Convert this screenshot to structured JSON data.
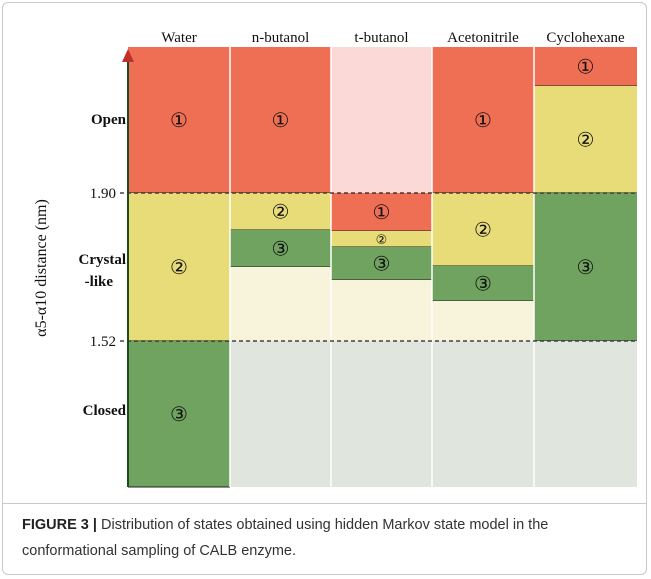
{
  "figure": {
    "columns": [
      {
        "name": "Water",
        "states": [
          "①",
          "②",
          "③"
        ]
      },
      {
        "name": "n-butanol",
        "states": [
          "①",
          "②",
          "③"
        ]
      },
      {
        "name": "t-butanol",
        "states": [
          "①",
          "②",
          "③"
        ]
      },
      {
        "name": "Acetonitrile",
        "states": [
          "①",
          "②",
          "③"
        ]
      },
      {
        "name": "Cyclohexane",
        "states": [
          "①",
          "②",
          "③"
        ]
      }
    ],
    "row_labels": {
      "open": "Open",
      "crystal": [
        "Crystal",
        "-like"
      ],
      "closed": "Closed"
    },
    "ticks": [
      "1.90",
      "1.52"
    ],
    "axis_label": "α5-α10 distance (nm)"
  },
  "caption": {
    "label": "FIGURE 3 |",
    "text": " Distribution of states obtained using hidden Markov state model in the conformational sampling of CALB enzyme."
  }
}
